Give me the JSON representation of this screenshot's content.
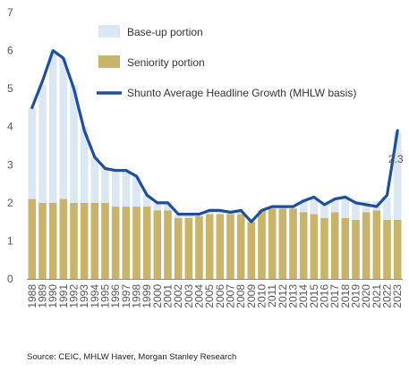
{
  "chart_data": {
    "type": "bar",
    "stacked": true,
    "categories": [
      "1988",
      "1989",
      "1990",
      "1991",
      "1992",
      "1993",
      "1994",
      "1995",
      "1996",
      "1997",
      "1998",
      "1999",
      "2000",
      "2001",
      "2002",
      "2003",
      "2004",
      "2005",
      "2006",
      "2007",
      "2008",
      "2009",
      "2010",
      "2011",
      "2012",
      "2013",
      "2014",
      "2015",
      "2016",
      "2017",
      "2018",
      "2019",
      "2020",
      "2021",
      "2022",
      "2023"
    ],
    "series": [
      {
        "name": "Seniority portion",
        "type": "bar",
        "color": "#c8b46a",
        "values": [
          2.1,
          2.0,
          2.0,
          2.1,
          2.0,
          2.0,
          2.0,
          2.0,
          1.9,
          1.9,
          1.9,
          1.9,
          1.8,
          1.8,
          1.6,
          1.6,
          1.65,
          1.7,
          1.7,
          1.7,
          1.7,
          1.5,
          1.8,
          1.85,
          1.85,
          1.85,
          1.75,
          1.7,
          1.6,
          1.75,
          1.6,
          1.55,
          1.75,
          1.8,
          1.55,
          1.55
        ]
      },
      {
        "name": "Base-up portion",
        "type": "bar",
        "color": "#dbe7f3",
        "values": [
          2.4,
          3.1,
          4.0,
          3.7,
          3.1,
          2.0,
          1.2,
          0.9,
          1.0,
          1.0,
          0.8,
          0.3,
          0.2,
          0.2,
          0.1,
          0.1,
          0.05,
          0.1,
          0.1,
          0.1,
          0.1,
          0.1,
          0.0,
          0.0,
          0.05,
          0.05,
          0.3,
          0.4,
          0.4,
          0.35,
          0.6,
          0.5,
          0.3,
          0.25,
          0.6,
          2.3
        ]
      },
      {
        "name": "Shunto Average Headline Growth (MHLW basis)",
        "type": "line",
        "color": "#1f4e9c",
        "values": [
          4.5,
          5.2,
          6.0,
          5.8,
          5.0,
          3.9,
          3.2,
          2.9,
          2.85,
          2.85,
          2.7,
          2.2,
          2.0,
          2.0,
          1.7,
          1.7,
          1.7,
          1.8,
          1.8,
          1.75,
          1.8,
          1.5,
          1.8,
          1.9,
          1.9,
          1.9,
          2.05,
          2.15,
          1.95,
          2.1,
          2.15,
          2.0,
          1.95,
          1.9,
          2.2,
          3.9
        ]
      }
    ],
    "annotations": [
      {
        "category": "2023",
        "text": "2.3"
      }
    ],
    "ylim": [
      0,
      7
    ],
    "yticks": [
      "0",
      "1",
      "2",
      "3",
      "4",
      "5",
      "6",
      "7"
    ],
    "xlabel": "",
    "ylabel": "",
    "grid": false,
    "legend_position": "top-center"
  },
  "source": "Source: CEIC, MHLW Haver, Morgan Stanley Research"
}
